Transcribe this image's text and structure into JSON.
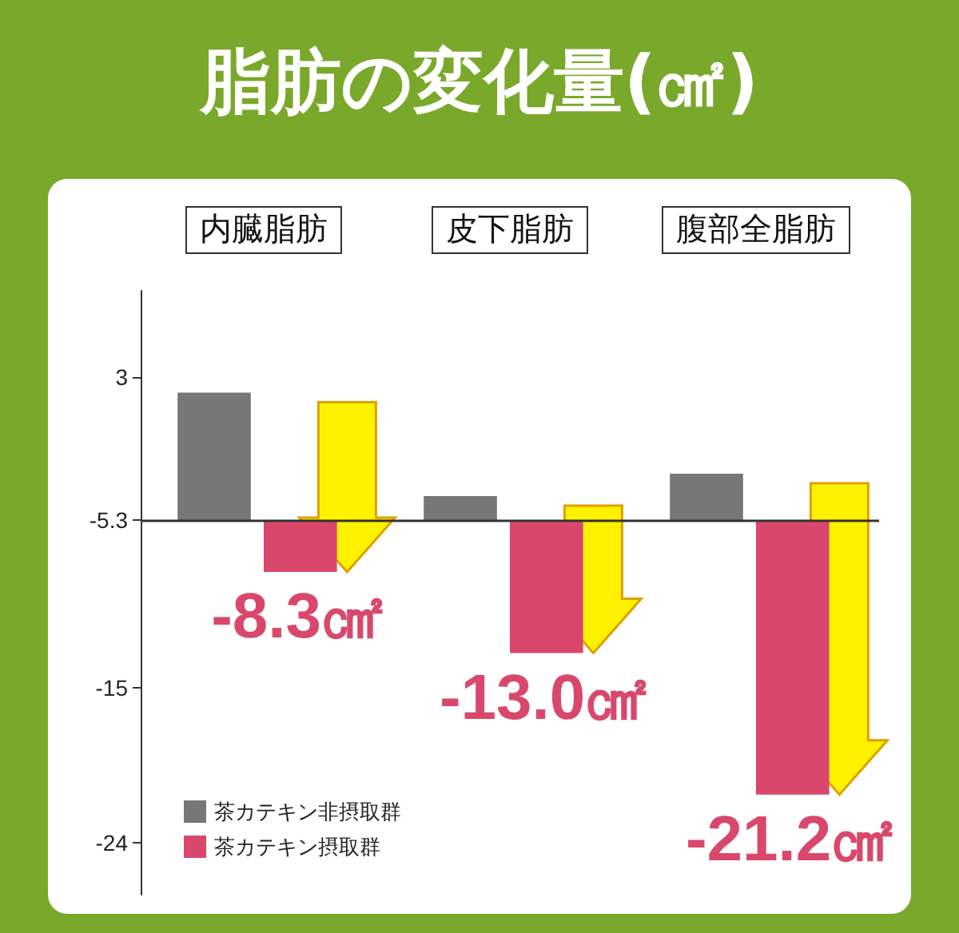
{
  "chart_data": {
    "type": "bar",
    "title": "脂肪の変化量(㎠)",
    "categories": [
      "内臓脂肪",
      "皮下脂肪",
      "腹部全脂肪"
    ],
    "series": [
      {
        "name": "茶カテキン非摂取群",
        "color": "#777777",
        "base": [
          -5.3,
          -5.3,
          -5.3
        ],
        "values": [
          7.4,
          1.4,
          2.7
        ]
      },
      {
        "name": "茶カテキン摂取群",
        "color": "#d9486c",
        "base": [
          -5.3,
          -5.3,
          -5.3
        ],
        "values": [
          -3.0,
          -7.7,
          -15.9
        ],
        "value_labels": [
          "-8.3㎠",
          "-13.0㎠",
          "-21.2㎠"
        ]
      }
    ],
    "ylim": [
      -27,
      8
    ],
    "yticks": [
      3,
      -5.3,
      -15,
      -24
    ],
    "ref_lines": [
      {
        "axis": "y",
        "value": -5.3,
        "color": "#333333"
      }
    ],
    "grid": false,
    "legend": "bottom left"
  }
}
